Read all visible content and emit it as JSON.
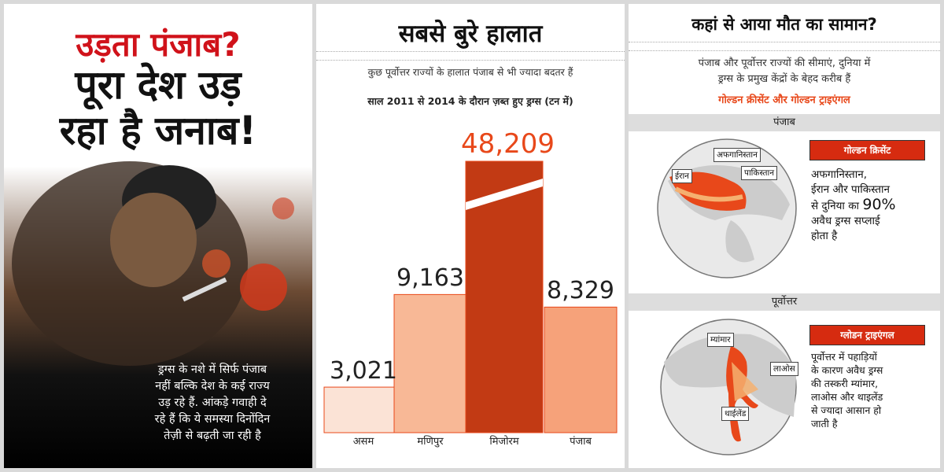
{
  "colors": {
    "accent_red": "#d0121a",
    "accent_orange": "#e8481a",
    "badge_red": "#d62b10"
  },
  "panel1": {
    "headline_red": "उड़ता पंजाब?",
    "headline_line1": "पूरा देश उड़",
    "headline_line2": "रहा है जनाब!",
    "body_lines": [
      "ड्रग्स के नशे में सिर्फ पंजाब",
      "नहीं बल्कि देश के कई राज्य",
      "उड़ रहे हैं. आंकड़े गवाही दे",
      "रहे हैं कि ये समस्या दिनोंदिन",
      "तेज़ी से बढ़ती जा रही है"
    ]
  },
  "panel2": {
    "title": "सबसे बुरे हालात",
    "subtitle": "कुछ पूर्वोत्तर राज्यों के हालात पंजाब से भी ज्यादा बदतर हैं",
    "period": "साल 2011 से 2014 के दौरान ज़ब्त हुए ड्रग्स (टन में)"
  },
  "chart_data": {
    "type": "bar",
    "categories": [
      "असम",
      "मणिपुर",
      "मिजोरम",
      "पंजाब"
    ],
    "values": [
      3021,
      9163,
      48209,
      8329
    ],
    "value_labels": [
      "3,021",
      "9,163",
      "48,209",
      "8,329"
    ],
    "title": "सबसे बुरे हालात",
    "subtitle": "साल 2011 से 2014 के दौरान ज़ब्त हुए ड्रग्स (टन में)",
    "xlabel": "",
    "ylabel": "",
    "axis_broken": true,
    "grid": false
  },
  "panel3": {
    "title": "कहां से आया मौत का सामान?",
    "desc_line1": "पंजाब और पूर्वोत्तर राज्यों की सीमाएं, दुनिया में",
    "desc_line2": "ड्रग्स के प्रमुख केंद्रों के बेहद करीब हैं",
    "highlight": "गोल्डन क्रीसेंट और गोल्डन ट्राइएंगल",
    "section1": {
      "header": "पंजाब",
      "badge": "गोल्डन क्रिसेंट",
      "lines": [
        "अफगानिस्तान,",
        "ईरान और पाकिस्तान",
        "से दुनिया का",
        "90%",
        "अवैध ड्रग्स सप्लाई",
        "होता है"
      ],
      "map_labels": {
        "afghanistan": "अफगानिस्तान",
        "iran": "ईरान",
        "pakistan": "पाकिस्तान"
      }
    },
    "section2": {
      "header": "पूर्वोत्तर",
      "badge": "ग्लोडन ट्राइएंगल",
      "lines": [
        "पूर्वोत्तर में पहाड़ियों",
        "के कारण अवैध ड्रग्स",
        "की तस्करी म्यांमार,",
        "लाओस और थाइलेंड",
        "से ज्यादा आसान हो",
        "जाती है"
      ],
      "map_labels": {
        "myanmar": "म्यांमार",
        "laos": "लाओस",
        "thailand": "थाईलेंड"
      }
    }
  }
}
